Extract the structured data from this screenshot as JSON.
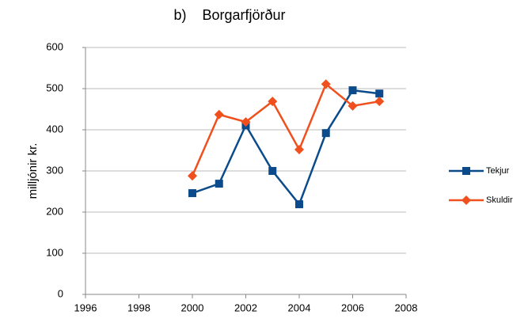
{
  "chart_data": {
    "type": "line",
    "title": "b)    Borgarfjörður",
    "y_label": "milljónir kr.",
    "x": [
      2000,
      2001,
      2002,
      2003,
      2004,
      2005,
      2006,
      2007
    ],
    "series": [
      {
        "name": "Tekjur",
        "color": "#0b4a8b",
        "marker": "square",
        "values": [
          246,
          269,
          411,
          300,
          219,
          392,
          496,
          488
        ]
      },
      {
        "name": "Skuldir",
        "color": "#f0501e",
        "marker": "diamond",
        "values": [
          288,
          437,
          419,
          469,
          352,
          511,
          458,
          469
        ]
      }
    ],
    "xlim": [
      1996,
      2008
    ],
    "xticks": [
      1996,
      1998,
      2000,
      2002,
      2004,
      2006,
      2008
    ],
    "ylim": [
      0,
      600
    ],
    "yticks": [
      0,
      100,
      200,
      300,
      400,
      500,
      600
    ],
    "grid": true,
    "legend": "right"
  }
}
